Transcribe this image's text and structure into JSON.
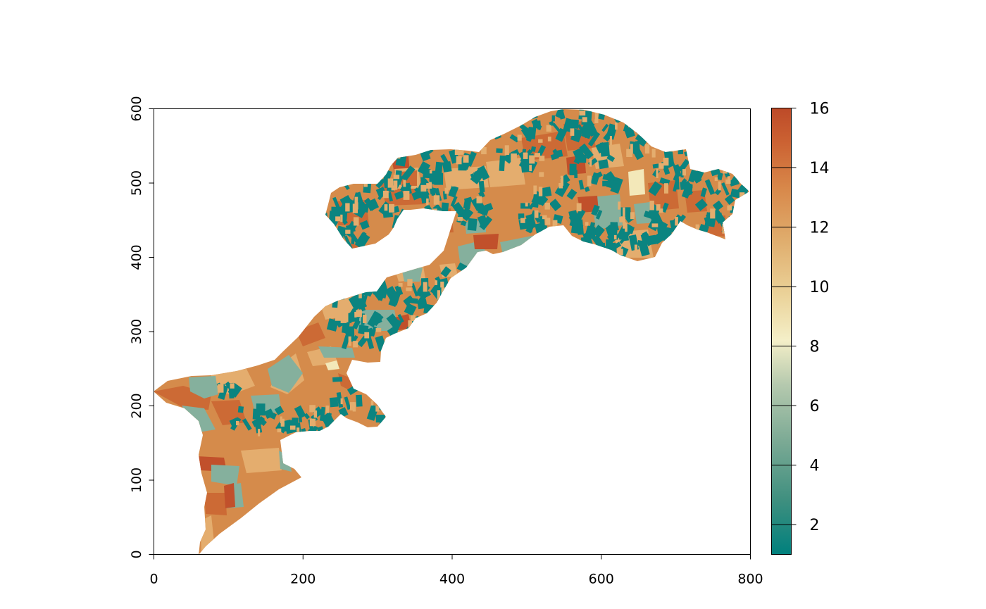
{
  "plot": {
    "x_axis": {
      "min": 0,
      "max": 800,
      "ticks": [
        0,
        200,
        400,
        600,
        800
      ]
    },
    "y_axis": {
      "min": 0,
      "max": 600,
      "ticks": [
        0,
        100,
        200,
        300,
        400,
        500,
        600
      ]
    }
  },
  "legend": {
    "min": 1,
    "max": 16,
    "ticks": [
      2,
      4,
      6,
      8,
      10,
      12,
      14,
      16
    ],
    "palette": [
      "#00807d",
      "#3e8f7f",
      "#7aa994",
      "#b5c9ae",
      "#f4efc8",
      "#ebd39a",
      "#e0ae6e",
      "#d8884a",
      "#cc6333",
      "#bd4a28"
    ]
  },
  "map": {
    "region_colors": {
      "teal": "#0b8480",
      "sage": "#85b09d",
      "orange": "#d58b4b",
      "dark_orange": "#cc6a35",
      "red_orange": "#c1502b",
      "tan": "#e4ad6e",
      "cream": "#f3e8b9"
    }
  }
}
